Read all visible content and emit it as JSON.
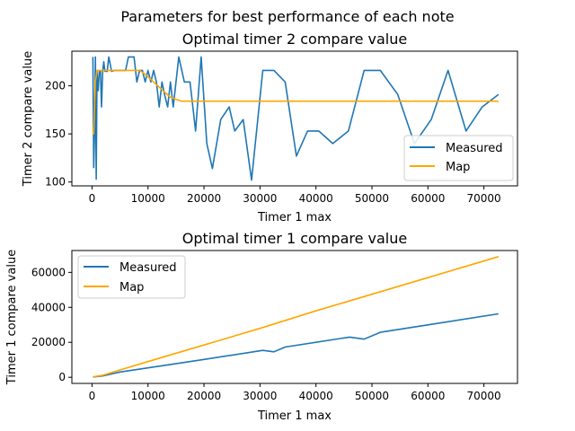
{
  "figure": {
    "suptitle": "Parameters for best performance of each note"
  },
  "colors": {
    "measured": "#1f77b4",
    "map": "#ffa500"
  },
  "chart_data": [
    {
      "type": "line",
      "title": "Optimal timer 2 compare value",
      "xlabel": "Timer 1 max",
      "ylabel": "Timer 2 compare value",
      "xlim": [
        -3600,
        76000
      ],
      "ylim": [
        96,
        236
      ],
      "xticks": [
        0,
        10000,
        20000,
        30000,
        40000,
        50000,
        60000,
        70000
      ],
      "xtick_labels": [
        "0",
        "10000",
        "20000",
        "30000",
        "40000",
        "50000",
        "60000",
        "70000"
      ],
      "yticks": [
        100,
        150,
        200
      ],
      "ytick_labels": [
        "100",
        "150",
        "200"
      ],
      "legend_position": "lower-right",
      "series": [
        {
          "name": "Measured",
          "x": [
            150,
            300,
            450,
            600,
            750,
            900,
            1100,
            1300,
            1500,
            1700,
            1900,
            2100,
            2300,
            2700,
            3000,
            3500,
            4000,
            5000,
            6000,
            6500,
            7000,
            7500,
            8000,
            8500,
            9000,
            9500,
            10000,
            10500,
            11000,
            11500,
            12000,
            12500,
            13000,
            13500,
            14000,
            14500,
            15500,
            16500,
            17500,
            18500,
            19500,
            20500,
            21500,
            23000,
            24500,
            25500,
            27000,
            28500,
            30500,
            32500,
            34500,
            36500,
            38500,
            40500,
            43000,
            45800,
            48600,
            51500,
            54600,
            57600,
            60600,
            63600,
            66800,
            69700,
            72600
          ],
          "y": [
            230,
            115,
            150,
            230,
            103,
            215,
            195,
            215,
            215,
            178,
            215,
            225,
            215,
            215,
            230,
            215,
            216,
            216,
            216,
            230,
            230,
            230,
            204,
            216,
            216,
            204,
            216,
            204,
            216,
            204,
            178,
            204,
            190,
            178,
            204,
            178,
            230,
            204,
            204,
            153,
            230,
            140,
            114,
            165,
            178,
            153,
            165,
            102,
            216,
            216,
            204,
            127,
            153,
            153,
            140,
            153,
            216,
            216,
            191,
            140,
            165,
            216,
            153,
            178,
            191
          ]
        },
        {
          "name": "Map",
          "x": [
            150,
            300,
            450,
            600,
            900,
            1500,
            3000,
            5000,
            7000,
            8500,
            9500,
            11000,
            12500,
            14000,
            16000,
            20000,
            30000,
            40000,
            50000,
            60000,
            72600
          ],
          "y": [
            153,
            150,
            178,
            205,
            216,
            216,
            216,
            216,
            216,
            216,
            212,
            204,
            196,
            188,
            184,
            184,
            184,
            184,
            184,
            184,
            184
          ]
        }
      ]
    },
    {
      "type": "line",
      "title": "Optimal timer 1 compare value",
      "xlabel": "Timer 1 max",
      "ylabel": "Timer 1 compare value",
      "xlim": [
        -3600,
        76000
      ],
      "ylim": [
        -3500,
        72500
      ],
      "xticks": [
        0,
        10000,
        20000,
        30000,
        40000,
        50000,
        60000,
        70000
      ],
      "xtick_labels": [
        "0",
        "10000",
        "20000",
        "30000",
        "40000",
        "50000",
        "60000",
        "70000"
      ],
      "yticks": [
        0,
        20000,
        40000,
        60000
      ],
      "ytick_labels": [
        "0",
        "20000",
        "40000",
        "60000"
      ],
      "legend_position": "upper-left",
      "series": [
        {
          "name": "Measured",
          "x": [
            150,
            2000,
            5000,
            10000,
            20000,
            30500,
            32500,
            34500,
            46000,
            48600,
            51500,
            60000,
            72600
          ],
          "y": [
            100,
            800,
            3000,
            5400,
            10200,
            15400,
            14600,
            17300,
            23000,
            21800,
            25700,
            30000,
            36300
          ]
        },
        {
          "name": "Map",
          "x": [
            150,
            2000,
            5000,
            10000,
            20000,
            30000,
            40000,
            50000,
            60000,
            72600
          ],
          "y": [
            200,
            1200,
            4200,
            9000,
            18500,
            28000,
            38000,
            47500,
            57000,
            69000
          ]
        }
      ]
    }
  ]
}
